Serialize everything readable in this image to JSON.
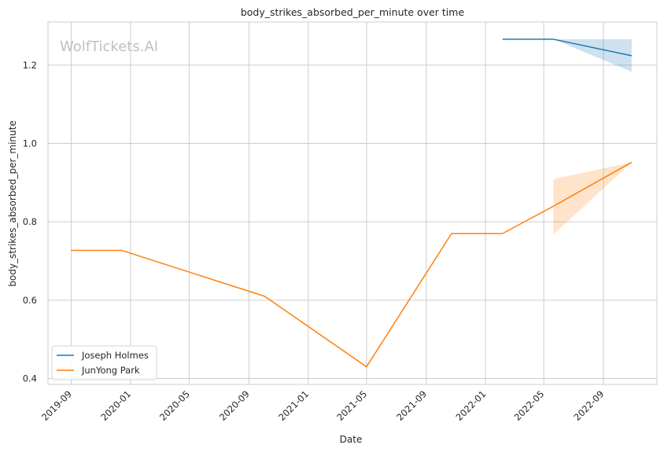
{
  "chart_data": {
    "type": "line",
    "title": "body_strikes_absorbed_per_minute over time",
    "xlabel": "Date",
    "ylabel": "body_strikes_absorbed_per_minute",
    "watermark": "WolfTickets.AI",
    "xlim": [
      "2019-07-15",
      "2022-12-20"
    ],
    "ylim": [
      0.385,
      1.31
    ],
    "x_ticks": [
      "2019-09",
      "2020-01",
      "2020-05",
      "2020-09",
      "2021-01",
      "2021-05",
      "2021-09",
      "2022-01",
      "2022-05",
      "2022-09"
    ],
    "y_ticks": [
      0.4,
      0.6,
      0.8,
      1.0,
      1.2
    ],
    "y_tick_labels": [
      "0.4",
      "0.6",
      "0.8",
      "1.0",
      "1.2"
    ],
    "grid": true,
    "legend_position": "lower-left",
    "series": [
      {
        "name": "Joseph Holmes",
        "color": "#1f77b4",
        "x": [
          "2022-02-05",
          "2022-05-21",
          "2022-10-29"
        ],
        "values": [
          1.266,
          1.266,
          1.224
        ],
        "band": [
          {
            "x": "2022-05-21",
            "low": 1.266,
            "high": 1.266
          },
          {
            "x": "2022-10-29",
            "low": 1.183,
            "high": 1.266
          }
        ]
      },
      {
        "name": "JunYong Park",
        "color": "#ff7f0e",
        "x": [
          "2019-08-31",
          "2019-12-14",
          "2020-10-03",
          "2021-05-01",
          "2021-10-23",
          "2022-02-05",
          "2022-05-21",
          "2022-10-29"
        ],
        "values": [
          0.727,
          0.727,
          0.61,
          0.43,
          0.77,
          0.77,
          0.84,
          0.952
        ],
        "band": [
          {
            "x": "2022-05-21",
            "low": 0.768,
            "high": 0.909
          },
          {
            "x": "2022-10-29",
            "low": 0.952,
            "high": 0.952
          }
        ]
      }
    ]
  }
}
